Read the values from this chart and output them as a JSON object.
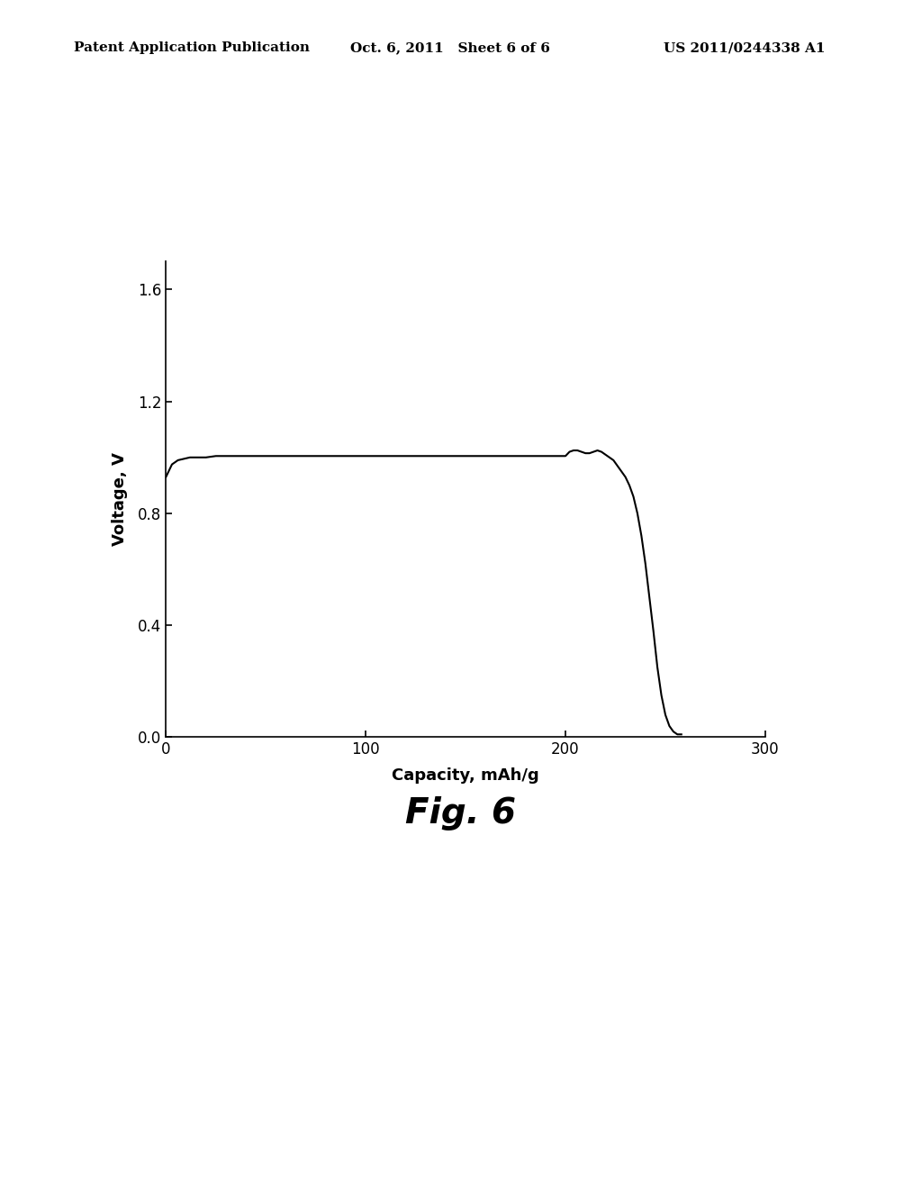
{
  "header_left": "Patent Application Publication",
  "header_mid": "Oct. 6, 2011   Sheet 6 of 6",
  "header_right": "US 2011/0244338 A1",
  "figure_label": "Fig. 6",
  "xlabel": "Capacity, mAh/g",
  "ylabel": "Voltage, V",
  "xlim": [
    0,
    300
  ],
  "ylim": [
    0.0,
    1.7
  ],
  "xticks": [
    0,
    100,
    200,
    300
  ],
  "yticks": [
    0.0,
    0.4,
    0.8,
    1.2,
    1.6
  ],
  "ytick_labels": [
    "0.0",
    "0.4",
    "0.8",
    "1.2",
    "1.6"
  ],
  "line_color": "#000000",
  "background_color": "#ffffff",
  "curve_x": [
    0,
    3,
    6,
    9,
    12,
    15,
    20,
    25,
    30,
    40,
    50,
    60,
    70,
    80,
    90,
    100,
    110,
    120,
    130,
    140,
    150,
    155,
    158,
    160,
    162,
    165,
    168,
    170,
    172,
    175,
    178,
    180,
    182,
    183,
    184,
    185,
    186,
    187,
    188,
    189,
    190,
    192,
    194,
    196,
    198,
    200,
    202,
    204,
    206,
    208,
    210,
    212,
    214,
    216,
    218,
    220,
    222,
    224,
    226,
    228,
    230,
    232,
    234,
    236,
    238,
    240,
    242,
    244,
    246,
    248,
    250,
    252,
    254,
    256,
    257,
    258
  ],
  "curve_y": [
    0.93,
    0.975,
    0.99,
    0.995,
    1.0,
    1.0,
    1.0,
    1.005,
    1.005,
    1.005,
    1.005,
    1.005,
    1.005,
    1.005,
    1.005,
    1.005,
    1.005,
    1.005,
    1.005,
    1.005,
    1.005,
    1.005,
    1.005,
    1.005,
    1.005,
    1.005,
    1.005,
    1.005,
    1.005,
    1.005,
    1.005,
    1.005,
    1.005,
    1.005,
    1.005,
    1.005,
    1.005,
    1.005,
    1.005,
    1.005,
    1.005,
    1.005,
    1.005,
    1.005,
    1.005,
    1.005,
    1.02,
    1.025,
    1.025,
    1.02,
    1.015,
    1.015,
    1.02,
    1.025,
    1.02,
    1.01,
    1.0,
    0.99,
    0.97,
    0.95,
    0.93,
    0.9,
    0.86,
    0.8,
    0.72,
    0.62,
    0.5,
    0.38,
    0.25,
    0.15,
    0.08,
    0.04,
    0.02,
    0.01,
    0.01,
    0.01
  ]
}
